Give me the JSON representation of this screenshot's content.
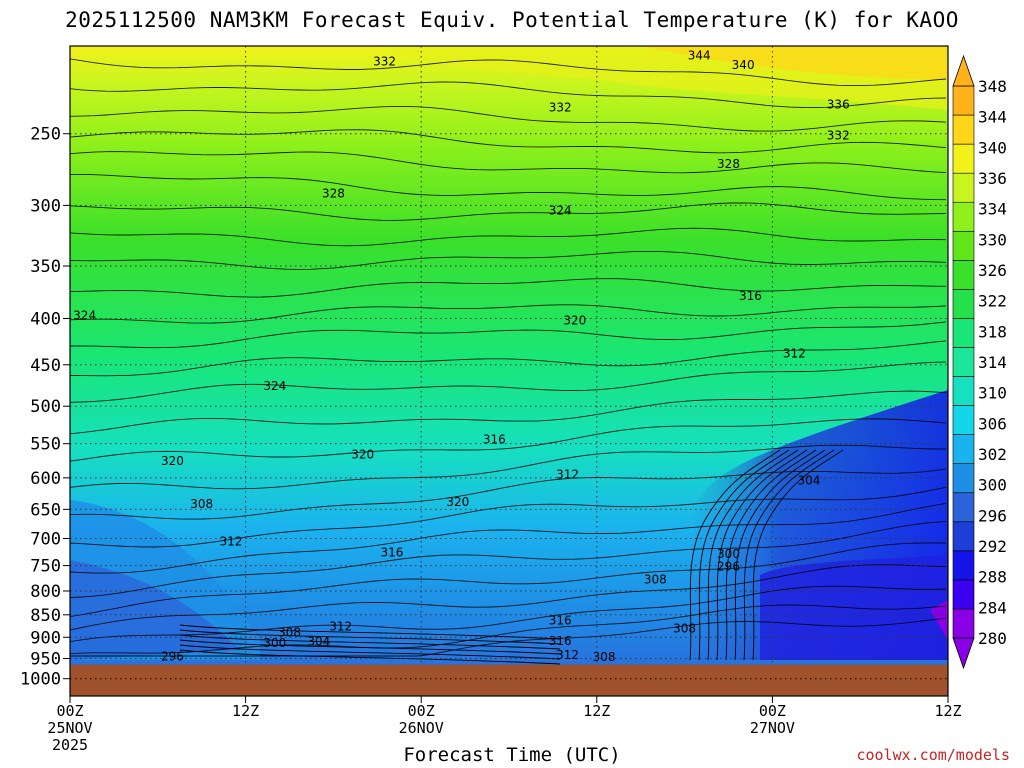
{
  "chart_data": {
    "type": "heatmap",
    "title": "2025112500 NAM3KM Forecast Equiv. Potential Temperature (K) for KAOO",
    "xlabel": "Forecast Time (UTC)",
    "ylabel": "",
    "x_ticks": [
      {
        "hours": 0,
        "lines": [
          "00Z",
          "25NOV",
          "2025"
        ]
      },
      {
        "hours": 12,
        "lines": [
          "12Z"
        ]
      },
      {
        "hours": 24,
        "lines": [
          "00Z",
          "26NOV"
        ]
      },
      {
        "hours": 36,
        "lines": [
          "12Z"
        ]
      },
      {
        "hours": 48,
        "lines": [
          "00Z",
          "27NOV"
        ]
      },
      {
        "hours": 60,
        "lines": [
          "12Z"
        ]
      }
    ],
    "xlim": [
      0,
      60
    ],
    "y_ticks": [
      250,
      300,
      350,
      400,
      450,
      500,
      550,
      600,
      650,
      700,
      750,
      800,
      850,
      900,
      950,
      1000
    ],
    "ylim": [
      1045,
      200
    ],
    "y_scale": "log",
    "grid": true,
    "ground_surface_hpa": 965,
    "colorbar": {
      "labels": [
        348,
        344,
        340,
        336,
        334,
        330,
        326,
        322,
        318,
        314,
        310,
        306,
        302,
        300,
        296,
        292,
        288,
        284,
        280
      ],
      "levels": [
        280,
        284,
        288,
        292,
        296,
        300,
        302,
        306,
        310,
        314,
        318,
        322,
        326,
        330,
        334,
        336,
        340,
        344,
        348
      ],
      "colors": [
        "#8a00e6",
        "#3b00f0",
        "#1414e8",
        "#1f3ed6",
        "#2c63d9",
        "#1f8fe6",
        "#1bb3ee",
        "#15d6e8",
        "#16e0c0",
        "#1ce69a",
        "#19e676",
        "#25e04a",
        "#3ae02a",
        "#62e61b",
        "#8ff01a",
        "#c8f51f",
        "#f2f21a",
        "#ffd61a",
        "#ffb21a"
      ]
    },
    "series": [
      {
        "kind": "contour_samples",
        "values_at_hours": [
          0,
          6,
          12,
          18,
          24,
          30,
          36,
          42,
          48,
          54,
          60
        ]
      }
    ],
    "contour_labels": [
      {
        "text": "332",
        "hours": 21.5,
        "hpa": 208
      },
      {
        "text": "344",
        "hours": 43,
        "hpa": 205
      },
      {
        "text": "340",
        "hours": 46,
        "hpa": 210
      },
      {
        "text": "332",
        "hours": 33.5,
        "hpa": 234
      },
      {
        "text": "336",
        "hours": 52.5,
        "hpa": 232
      },
      {
        "text": "332",
        "hours": 52.5,
        "hpa": 251
      },
      {
        "text": "328",
        "hours": 45,
        "hpa": 270
      },
      {
        "text": "328",
        "hours": 18,
        "hpa": 291
      },
      {
        "text": "324",
        "hours": 33.5,
        "hpa": 304
      },
      {
        "text": "316",
        "hours": 46.5,
        "hpa": 378
      },
      {
        "text": "324",
        "hours": 1,
        "hpa": 397
      },
      {
        "text": "320",
        "hours": 34.5,
        "hpa": 402
      },
      {
        "text": "312",
        "hours": 49.5,
        "hpa": 437
      },
      {
        "text": "324",
        "hours": 14,
        "hpa": 475
      },
      {
        "text": "316",
        "hours": 29,
        "hpa": 544
      },
      {
        "text": "320",
        "hours": 7,
        "hpa": 575
      },
      {
        "text": "320",
        "hours": 20,
        "hpa": 565
      },
      {
        "text": "312",
        "hours": 34,
        "hpa": 595
      },
      {
        "text": "304",
        "hours": 50.5,
        "hpa": 604
      },
      {
        "text": "320",
        "hours": 26.5,
        "hpa": 638
      },
      {
        "text": "308",
        "hours": 9,
        "hpa": 641
      },
      {
        "text": "312",
        "hours": 11,
        "hpa": 705
      },
      {
        "text": "316",
        "hours": 22,
        "hpa": 725
      },
      {
        "text": "300",
        "hours": 45,
        "hpa": 728
      },
      {
        "text": "296",
        "hours": 45,
        "hpa": 752
      },
      {
        "text": "308",
        "hours": 40,
        "hpa": 777
      },
      {
        "text": "316",
        "hours": 33.5,
        "hpa": 862
      },
      {
        "text": "308",
        "hours": 15,
        "hpa": 889
      },
      {
        "text": "312",
        "hours": 18.5,
        "hpa": 876
      },
      {
        "text": "308",
        "hours": 42,
        "hpa": 880
      },
      {
        "text": "300",
        "hours": 14,
        "hpa": 913
      },
      {
        "text": "304",
        "hours": 17,
        "hpa": 910
      },
      {
        "text": "316",
        "hours": 33.5,
        "hpa": 908
      },
      {
        "text": "296",
        "hours": 7,
        "hpa": 945
      },
      {
        "text": "312",
        "hours": 34,
        "hpa": 942
      },
      {
        "text": "308",
        "hours": 36.5,
        "hpa": 946
      }
    ]
  },
  "watermark": "coolwx.com/models"
}
